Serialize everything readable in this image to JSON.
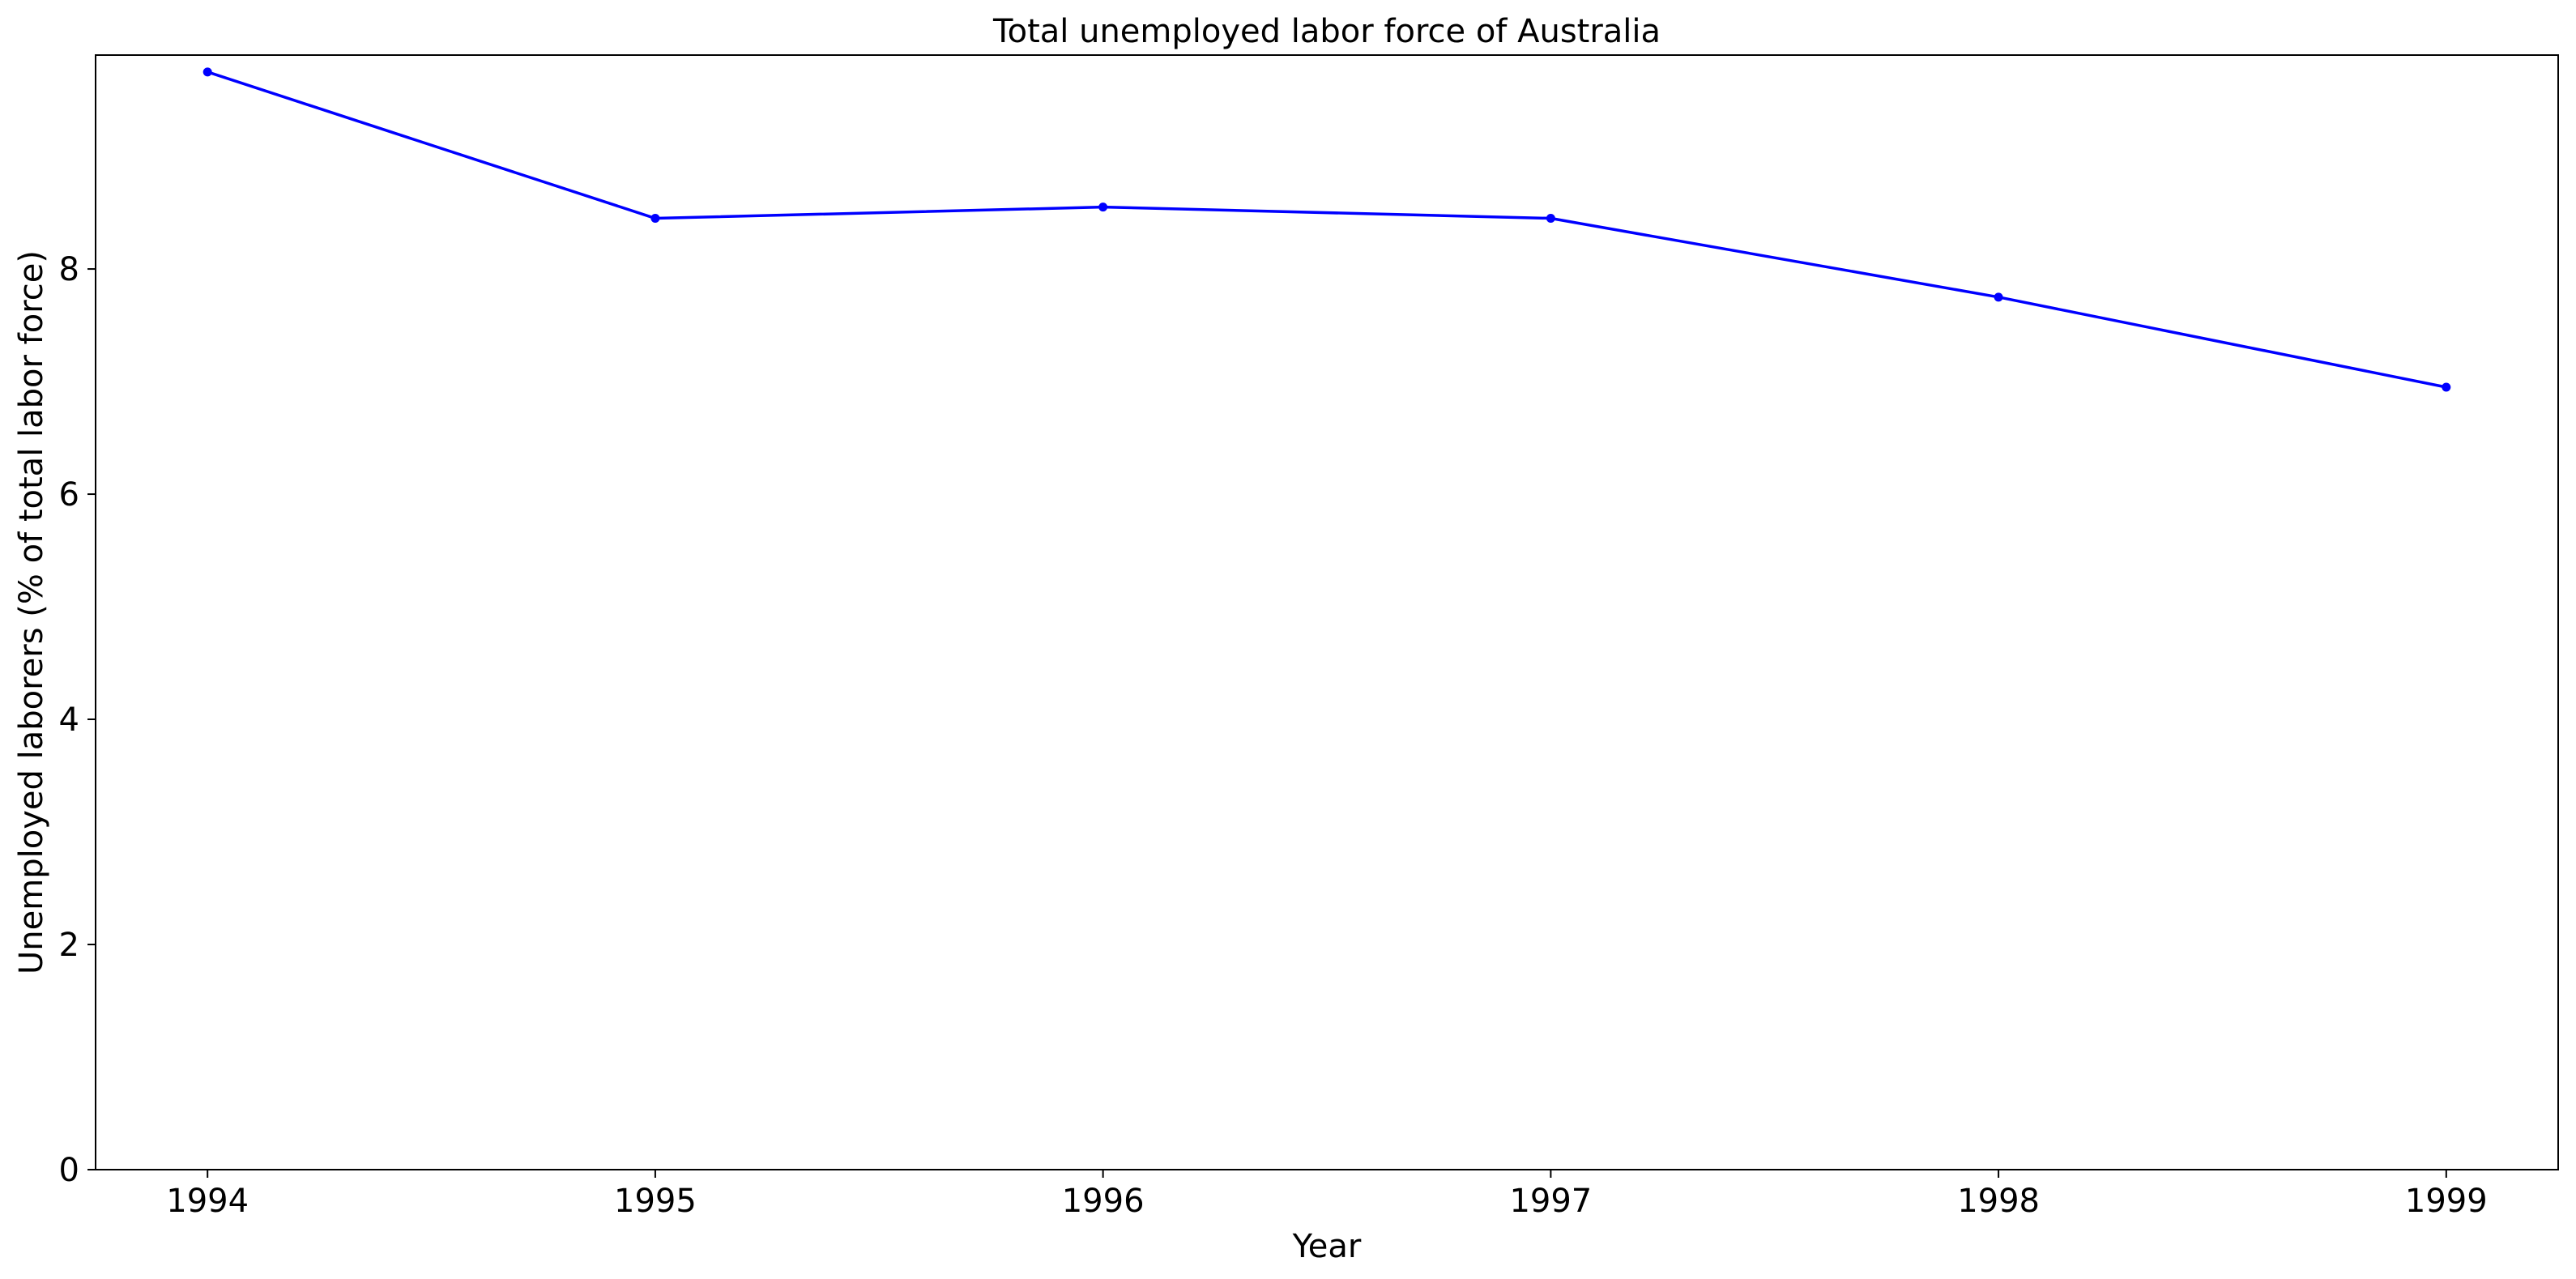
{
  "chart_data": {
    "type": "line",
    "title": "Total unemployed labor force of Australia",
    "xlabel": "Year",
    "ylabel": "Unemployed laborers (% of total labor force)",
    "x": [
      1994,
      1995,
      1996,
      1997,
      1998,
      1999
    ],
    "x_tick_labels": [
      "1994",
      "1995",
      "1996",
      "1997",
      "1998",
      "1999"
    ],
    "series": [
      {
        "values": [
          9.75,
          8.45,
          8.55,
          8.45,
          7.75,
          6.95
        ],
        "color": "#0000ff"
      }
    ],
    "xlim": [
      1993.75,
      1999.25
    ],
    "ylim": [
      0,
      9.9
    ],
    "y_ticks": [
      0,
      2,
      4,
      6,
      8
    ],
    "y_tick_labels": [
      "0",
      "2",
      "4",
      "6",
      "8"
    ],
    "grid": false,
    "markers": true
  }
}
